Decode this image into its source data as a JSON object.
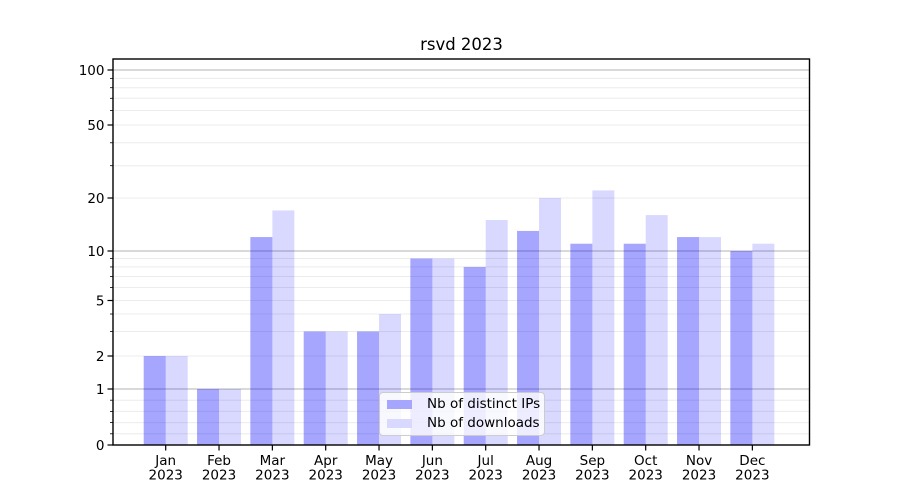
{
  "chart_data": {
    "type": "bar",
    "title": "rsvd 2023",
    "categories": [
      "Jan",
      "Feb",
      "Mar",
      "Apr",
      "May",
      "Jun",
      "Jul",
      "Aug",
      "Sep",
      "Oct",
      "Nov",
      "Dec"
    ],
    "xlabel_second_line": "2023",
    "series": [
      {
        "name": "Nb of distinct IPs",
        "values": [
          2,
          1,
          12,
          3,
          3,
          9,
          8,
          13,
          11,
          11,
          12,
          10
        ],
        "fill": "#0000ff",
        "fill_opacity": 0.35,
        "rendered_hex": "#a6a6ff"
      },
      {
        "name": "Nb of downloads",
        "values": [
          2,
          1,
          17,
          3,
          4,
          9,
          15,
          20,
          22,
          16,
          12,
          11
        ],
        "fill": "#0000ff",
        "fill_opacity": 0.15,
        "rendered_hex": "#d9d9ff"
      }
    ],
    "yscale": "log-like (symlog)",
    "ytick_labels": [
      0,
      1,
      2,
      5,
      10,
      20,
      50,
      100
    ],
    "ylim": [
      0,
      100
    ],
    "grid": true,
    "legend_position": "lower-center",
    "colors": {
      "major_grid": "#b3b3b3",
      "minor_grid": "#ececec",
      "axis": "#000000",
      "text": "#000000",
      "background": "#ffffff"
    }
  }
}
